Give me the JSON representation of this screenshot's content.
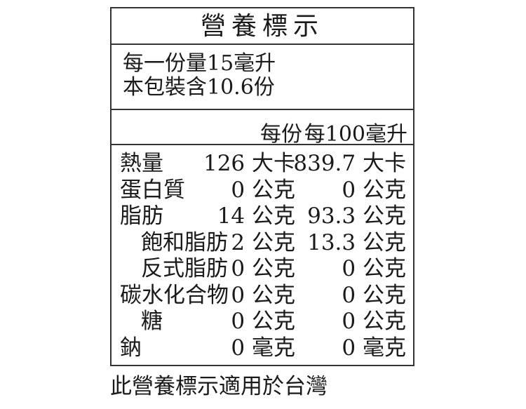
{
  "title": "營養標示",
  "serving": {
    "per_serving": "每一份量15毫升",
    "servings_per_package": "本包裝含10.6份"
  },
  "columns": {
    "per_serving": "每份",
    "per_100": "每100毫升"
  },
  "rows": [
    {
      "name": "熱量",
      "per_serving": "126 大卡",
      "per_100": "839.7 大卡",
      "indent": false
    },
    {
      "name": "蛋白質",
      "per_serving": "0 公克",
      "per_100": "0 公克",
      "indent": false
    },
    {
      "name": "脂肪",
      "per_serving": "14 公克",
      "per_100": "93.3 公克",
      "indent": false
    },
    {
      "name": "飽和脂肪",
      "per_serving": "2 公克",
      "per_100": "13.3 公克",
      "indent": true
    },
    {
      "name": "反式脂肪",
      "per_serving": "0 公克",
      "per_100": "0 公克",
      "indent": true
    },
    {
      "name": "碳水化合物",
      "per_serving": "0 公克",
      "per_100": "0 公克",
      "indent": false
    },
    {
      "name": "糖",
      "per_serving": "0 公克",
      "per_100": "0 公克",
      "indent": true
    },
    {
      "name": "鈉",
      "per_serving": "0 毫克",
      "per_100": "0 毫克",
      "indent": false
    }
  ],
  "footer": "此營養標示適用於台灣"
}
